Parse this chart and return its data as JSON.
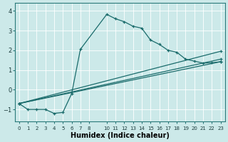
{
  "xlabel": "Humidex (Indice chaleur)",
  "ylabel": "",
  "background_color": "#cce9e9",
  "line_color": "#1a6b6b",
  "ylim": [
    -1.6,
    4.4
  ],
  "xlim": [
    -0.5,
    23.5
  ],
  "yticks": [
    -1,
    0,
    1,
    2,
    3,
    4
  ],
  "xticks": [
    0,
    1,
    2,
    3,
    4,
    5,
    6,
    7,
    8,
    10,
    11,
    12,
    13,
    14,
    15,
    16,
    17,
    18,
    19,
    20,
    21,
    22,
    23
  ],
  "main_line": {
    "x": [
      0,
      1,
      2,
      3,
      4,
      5,
      6,
      7,
      10,
      11,
      12,
      13,
      14,
      15,
      16,
      17,
      18,
      19,
      20,
      21,
      22,
      23
    ],
    "y": [
      -0.7,
      -1.0,
      -1.0,
      -1.0,
      -1.2,
      -1.15,
      -0.2,
      2.05,
      3.82,
      3.6,
      3.45,
      3.22,
      3.12,
      2.52,
      2.3,
      2.0,
      1.9,
      1.55,
      1.45,
      1.35,
      1.37,
      1.42
    ]
  },
  "straight_lines": [
    {
      "x": [
        0,
        23
      ],
      "y": [
        -0.7,
        1.95
      ]
    },
    {
      "x": [
        0,
        23
      ],
      "y": [
        -0.7,
        1.55
      ]
    },
    {
      "x": [
        0,
        23
      ],
      "y": [
        -0.7,
        1.42
      ]
    }
  ]
}
